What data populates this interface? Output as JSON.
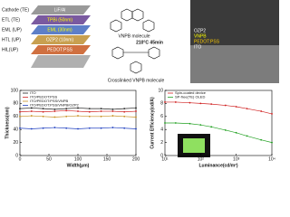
{
  "diagram": {
    "stack_labels": [
      "Cathode (TE)",
      "ETL (TE)",
      "EML (UP)",
      "HTL (UP)",
      "HIL(UP)"
    ],
    "layer_labels": [
      "LiF/Al",
      "TPBi (50nm)",
      "EML (30nm)",
      "OZP2 (10nm)",
      "PEDOT:PSS"
    ],
    "molecule_label": "VNPB molecule",
    "process_label": "210°C 45min",
    "crosslinked_label": "Crosslinked VNPB molecule",
    "sem_labels": [
      "OZP2",
      "VNPB",
      "PEDOT:PSS",
      "ITO"
    ]
  },
  "chart_data": [
    {
      "type": "line",
      "x_label": "Width(μm)",
      "y_label": "Thickness(nm)",
      "x": [
        0,
        20,
        40,
        60,
        80,
        100,
        120,
        140,
        160,
        180,
        200
      ],
      "xlim": [
        0,
        200
      ],
      "xticks": [
        0,
        50,
        100,
        150,
        200
      ],
      "ylim": [
        0,
        100
      ],
      "yticks": [
        0,
        20,
        40,
        60,
        80,
        100
      ],
      "series": [
        {
          "name": "ITO",
          "color": "#222222",
          "values": [
            72,
            73,
            72,
            71,
            72,
            73,
            72,
            72,
            71,
            72,
            73
          ]
        },
        {
          "name": "ITO/PEDOT:PSS",
          "color": "#d02020",
          "values": [
            67,
            68,
            67,
            68,
            69,
            68,
            67,
            68,
            68,
            67,
            68
          ]
        },
        {
          "name": "ITO/PEDOT:PSS/VNPB",
          "color": "#c89020",
          "values": [
            60,
            61,
            60,
            59,
            60,
            61,
            60,
            60,
            61,
            60,
            59
          ]
        },
        {
          "name": "ITO/PEDOT:PSS/VNPB/OZP2",
          "color": "#2040c0",
          "values": [
            42,
            41,
            42,
            43,
            42,
            41,
            42,
            42,
            43,
            42,
            41
          ]
        }
      ]
    },
    {
      "type": "line",
      "x_label": "Luminance(cd/m²)",
      "y_label": "Current Efficiency(cd/A)",
      "log_x": true,
      "x": [
        10,
        20,
        50,
        100,
        200,
        500,
        1000,
        2000,
        5000,
        10000
      ],
      "xlim": [
        10,
        10000
      ],
      "xticks": [
        {
          "value": 10,
          "label": "10¹"
        },
        {
          "value": 100,
          "label": "10²"
        },
        {
          "value": 1000,
          "label": "10³"
        },
        {
          "value": 10000,
          "label": "10⁴"
        }
      ],
      "ylim": [
        0,
        10
      ],
      "yticks": [
        0,
        2,
        4,
        6,
        8,
        10
      ],
      "series": [
        {
          "name": "Spin-coated device",
          "color": "#d02020",
          "values": [
            8.2,
            8.2,
            8.1,
            8.0,
            7.9,
            7.7,
            7.5,
            7.2,
            6.8,
            6.4
          ]
        },
        {
          "name": "SP-free(TE) OLED",
          "color": "#20a020",
          "values": [
            5.0,
            5.0,
            4.9,
            4.7,
            4.4,
            3.9,
            3.5,
            3.0,
            2.4,
            2.0
          ]
        }
      ]
    }
  ]
}
